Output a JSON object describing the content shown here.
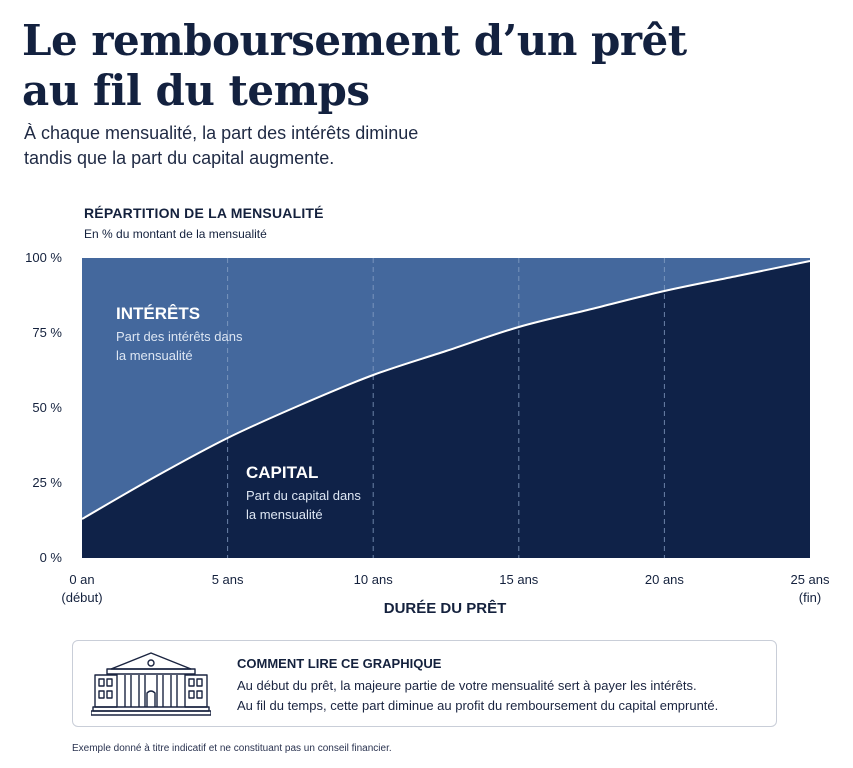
{
  "header": {
    "title_lines": [
      "Le remboursement d’un prêt",
      "au fil du temps"
    ],
    "subtitle_lines": [
      "À chaque mensualité, la part des intérêts diminue",
      "tandis que la part du capital augmente."
    ]
  },
  "chart_data": {
    "type": "area",
    "title": "RÉPARTITION DE LA MENSUALITÉ",
    "subtitle": "En % du montant de la mensualité",
    "xlabel": "DURÉE DU PRÊT",
    "ylabel": "",
    "xlim": [
      0,
      25
    ],
    "ylim": [
      0,
      100
    ],
    "x_ticks": [
      {
        "value": 0,
        "label": "0 an",
        "sublabel": "(début)"
      },
      {
        "value": 5,
        "label": "5 ans",
        "sublabel": ""
      },
      {
        "value": 10,
        "label": "10 ans",
        "sublabel": ""
      },
      {
        "value": 15,
        "label": "15 ans",
        "sublabel": ""
      },
      {
        "value": 20,
        "label": "20 ans",
        "sublabel": ""
      },
      {
        "value": 25,
        "label": "25 ans",
        "sublabel": "(fin)"
      }
    ],
    "y_ticks": [
      {
        "value": 0,
        "label": "0 %"
      },
      {
        "value": 25,
        "label": "25 %"
      },
      {
        "value": 50,
        "label": "50 %"
      },
      {
        "value": 75,
        "label": "75 %"
      },
      {
        "value": 100,
        "label": "100 %"
      }
    ],
    "x": [
      0,
      2.5,
      5,
      7.5,
      10,
      12.5,
      15,
      17.5,
      20,
      22.5,
      25
    ],
    "series": [
      {
        "key": "capital",
        "values": [
          13,
          27,
          40,
          51,
          61,
          69,
          77,
          83,
          89,
          94,
          99
        ],
        "color": "#0f2248"
      },
      {
        "key": "interets",
        "values": [
          87,
          73,
          60,
          49,
          39,
          31,
          23,
          17,
          11,
          6,
          1
        ],
        "color": "#44689d"
      }
    ],
    "annotations": [
      {
        "key": "interets",
        "title": "INTÉRÊTS",
        "lines": [
          "Part des intérêts dans",
          "la mensualité"
        ]
      },
      {
        "key": "capital",
        "title": "CAPITAL",
        "lines": [
          "Part du capital dans",
          "la mensualité"
        ]
      }
    ],
    "grid": "vertical-dashed"
  },
  "info_box": {
    "icon": "bank-building-icon",
    "heading": "COMMENT LIRE CE GRAPHIQUE",
    "lines": [
      "Au début du prêt, la majeure partie de votre mensualité sert à payer les intérêts.",
      "Au fil du temps, cette part diminue au profit du remboursement du capital emprunté."
    ]
  },
  "footer": {
    "disclaimer": "Exemple donné à titre indicatif et ne constituant pas un conseil financier."
  }
}
